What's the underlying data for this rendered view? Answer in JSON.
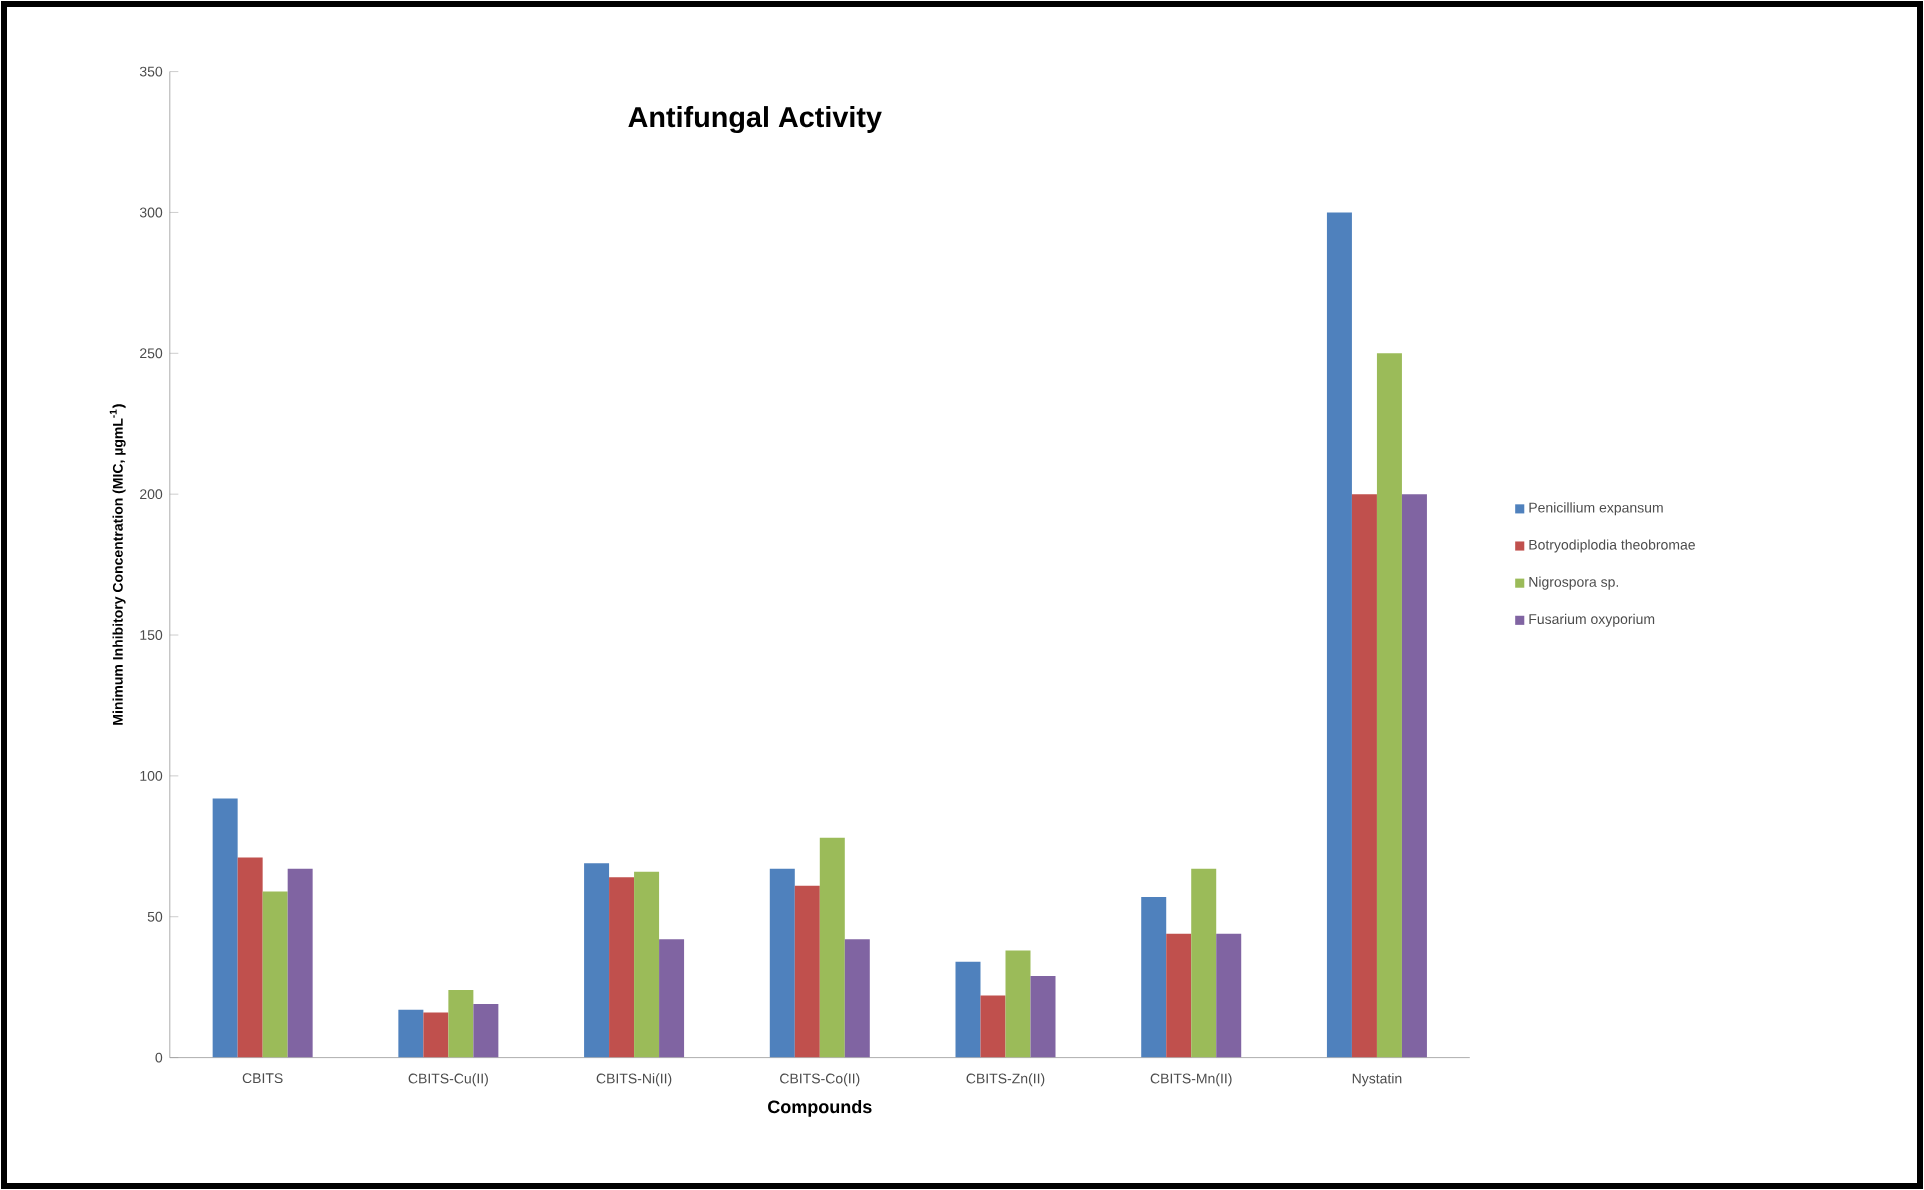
{
  "chart_data": {
    "type": "bar",
    "title": "Antifungal Activity",
    "xlabel": "Compounds",
    "ylabel": "Minimum Inhibitory Concentration (MIC, µgmL$^{-1}$)",
    "categories": [
      "CBITS",
      "CBITS-Cu(II)",
      "CBITS-Ni(II)",
      "CBITS-Co(II)",
      "CBITS-Zn(II)",
      "CBITS-Mn(II)",
      "Nystatin"
    ],
    "series": [
      {
        "name": "Penicillium expansum",
        "color": "#4f81bd",
        "values": [
          92,
          17,
          69,
          67,
          34,
          57,
          300
        ]
      },
      {
        "name": "Botryodiplodia theobromae",
        "color": "#c0504d",
        "values": [
          71,
          16,
          64,
          61,
          22,
          44,
          200
        ]
      },
      {
        "name": "Nigrospora sp.",
        "color": "#9bbb59",
        "values": [
          59,
          24,
          66,
          78,
          38,
          67,
          250
        ]
      },
      {
        "name": "Fusarium  oxyporium",
        "color": "#8064a2",
        "values": [
          67,
          19,
          42,
          42,
          29,
          44,
          200
        ]
      }
    ],
    "ylim": [
      0,
      350
    ],
    "yticks": [
      0,
      50,
      100,
      150,
      200,
      250,
      300,
      350
    ],
    "legend": "right",
    "grid": false
  }
}
